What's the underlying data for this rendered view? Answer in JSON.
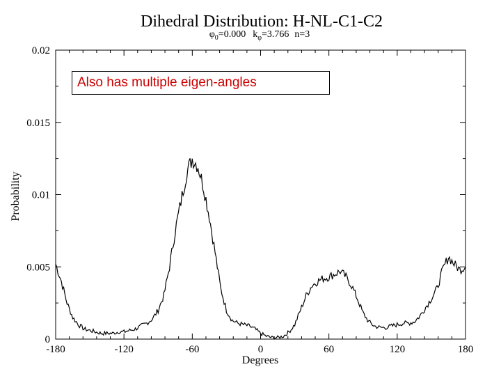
{
  "chart_data": {
    "type": "line",
    "title": "Dihedral Distribution: H-NL-C1-C2",
    "subtitle": {
      "phi_symbol": "φ",
      "phi_sub": "0",
      "phi_value": "=0.000",
      "k_symbol": "k",
      "k_sub": "φ",
      "k_value": "=3.766",
      "n_text": "n=3"
    },
    "xlabel": "Degrees",
    "ylabel": "Probability",
    "xlim": [
      -180,
      180
    ],
    "ylim": [
      0,
      0.02
    ],
    "x_ticks": [
      -180,
      -120,
      -60,
      0,
      60,
      120,
      180
    ],
    "x_tick_labels": [
      "-180",
      "-120",
      "-60",
      "0",
      "60",
      "120",
      "180"
    ],
    "y_ticks": [
      0,
      0.005,
      0.01,
      0.015,
      0.02
    ],
    "y_tick_labels": [
      "0",
      "0.005",
      "0.01",
      "0.015",
      "0.02"
    ],
    "grid": false,
    "series": [
      {
        "x": [
          -180,
          -175,
          -170,
          -165,
          -160,
          -155,
          -150,
          -145,
          -140,
          -135,
          -130,
          -125,
          -120,
          -115,
          -110,
          -105,
          -100,
          -95,
          -90,
          -85,
          -80,
          -75,
          -70,
          -65,
          -60,
          -55,
          -50,
          -45,
          -40,
          -35,
          -30,
          -25,
          -20,
          -15,
          -10,
          -5,
          0,
          5,
          10,
          15,
          20,
          25,
          30,
          35,
          40,
          45,
          50,
          55,
          60,
          65,
          70,
          75,
          80,
          85,
          90,
          95,
          100,
          105,
          110,
          115,
          120,
          125,
          130,
          135,
          140,
          145,
          150,
          155,
          160,
          165,
          170,
          175,
          180
        ],
        "y": [
          0.0052,
          0.004,
          0.0025,
          0.0015,
          0.001,
          0.0007,
          0.0006,
          0.0005,
          0.0004,
          0.0004,
          0.0004,
          0.0005,
          0.0005,
          0.0006,
          0.0007,
          0.0009,
          0.0011,
          0.0014,
          0.002,
          0.003,
          0.005,
          0.0075,
          0.0095,
          0.0115,
          0.0125,
          0.012,
          0.0105,
          0.0085,
          0.006,
          0.0035,
          0.002,
          0.0013,
          0.0011,
          0.001,
          0.0009,
          0.0007,
          0.0004,
          0.0002,
          0.0001,
          0.0001,
          0.0002,
          0.0005,
          0.001,
          0.002,
          0.003,
          0.0037,
          0.004,
          0.0042,
          0.0043,
          0.0045,
          0.0047,
          0.0043,
          0.0037,
          0.0028,
          0.0018,
          0.0012,
          0.0009,
          0.0008,
          0.0008,
          0.0009,
          0.001,
          0.0011,
          0.0011,
          0.0012,
          0.0016,
          0.0022,
          0.0028,
          0.0035,
          0.0048,
          0.0057,
          0.0052,
          0.0048,
          0.005
        ]
      }
    ]
  },
  "callout": {
    "text": "Also has multiple eigen-angles",
    "text_color": "#cc0000"
  }
}
